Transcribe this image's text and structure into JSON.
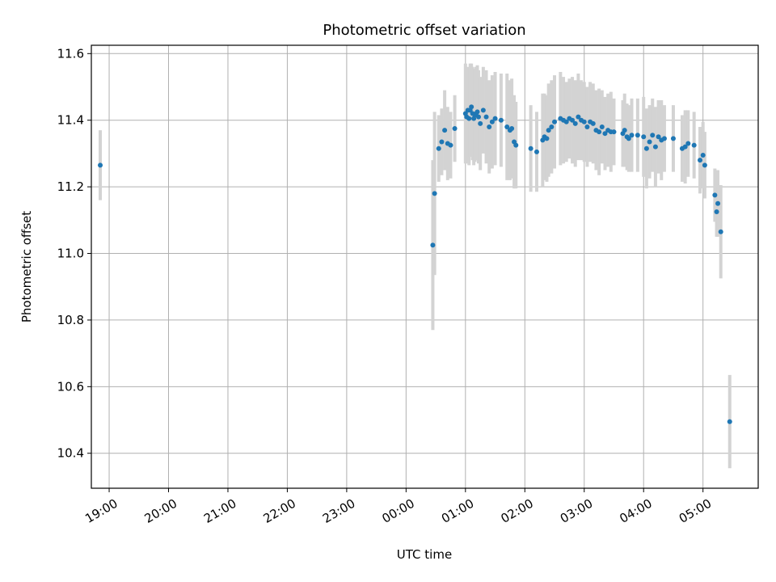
{
  "chart_data": {
    "type": "scatter",
    "title": "Photometric offset variation",
    "xlabel": "UTC time",
    "ylabel": "Photometric offset",
    "grid": true,
    "xlim_hours": [
      18.7,
      29.93
    ],
    "ylim": [
      10.295,
      11.625
    ],
    "x_ticks": [
      {
        "hours": 19,
        "label": "19:00"
      },
      {
        "hours": 20,
        "label": "20:00"
      },
      {
        "hours": 21,
        "label": "21:00"
      },
      {
        "hours": 22,
        "label": "22:00"
      },
      {
        "hours": 23,
        "label": "23:00"
      },
      {
        "hours": 24,
        "label": "00:00"
      },
      {
        "hours": 25,
        "label": "01:00"
      },
      {
        "hours": 26,
        "label": "02:00"
      },
      {
        "hours": 27,
        "label": "03:00"
      },
      {
        "hours": 28,
        "label": "04:00"
      },
      {
        "hours": 29,
        "label": "05:00"
      }
    ],
    "y_ticks": [
      {
        "value": 10.4,
        "label": "10.4"
      },
      {
        "value": 10.6,
        "label": "10.6"
      },
      {
        "value": 10.8,
        "label": "10.8"
      },
      {
        "value": 11.0,
        "label": "11.0"
      },
      {
        "value": 11.2,
        "label": "11.2"
      },
      {
        "value": 11.4,
        "label": "11.4"
      },
      {
        "value": 11.6,
        "label": "11.6"
      }
    ],
    "colors": {
      "point": "#1f77b4",
      "errorbar": "#d3d3d3",
      "grid": "#b0b0b0"
    },
    "series": [
      {
        "x_hours": [
          18.85,
          24.45,
          24.48,
          24.55,
          24.6,
          24.65,
          24.7,
          24.75,
          24.82,
          25.0,
          25.02,
          25.04,
          25.06,
          25.08,
          25.1,
          25.12,
          25.14,
          25.16,
          25.18,
          25.2,
          25.22,
          25.25,
          25.3,
          25.35,
          25.4,
          25.45,
          25.5,
          25.6,
          25.7,
          25.75,
          25.78,
          25.82,
          25.85,
          26.1,
          26.2,
          26.3,
          26.33,
          26.37,
          26.4,
          26.45,
          26.5,
          26.6,
          26.65,
          26.7,
          26.75,
          26.8,
          26.85,
          26.9,
          26.95,
          27.0,
          27.05,
          27.1,
          27.15,
          27.2,
          27.25,
          27.3,
          27.35,
          27.4,
          27.45,
          27.5,
          27.65,
          27.68,
          27.72,
          27.75,
          27.8,
          27.9,
          28.0,
          28.05,
          28.1,
          28.15,
          28.2,
          28.25,
          28.3,
          28.35,
          28.5,
          28.65,
          28.7,
          28.75,
          28.85,
          28.95,
          29.0,
          29.03,
          29.2,
          29.23,
          29.25,
          29.3,
          29.45
        ],
        "y": [
          11.265,
          11.025,
          11.18,
          11.315,
          11.335,
          11.37,
          11.33,
          11.325,
          11.375,
          11.42,
          11.41,
          11.43,
          11.405,
          11.43,
          11.44,
          11.42,
          11.405,
          11.415,
          11.42,
          11.425,
          11.41,
          11.39,
          11.43,
          11.41,
          11.38,
          11.395,
          11.405,
          11.4,
          11.38,
          11.37,
          11.375,
          11.335,
          11.325,
          11.315,
          11.305,
          11.34,
          11.35,
          11.345,
          11.37,
          11.38,
          11.395,
          11.405,
          11.4,
          11.395,
          11.405,
          11.4,
          11.39,
          11.41,
          11.4,
          11.395,
          11.38,
          11.395,
          11.39,
          11.37,
          11.365,
          11.38,
          11.36,
          11.37,
          11.365,
          11.365,
          11.36,
          11.37,
          11.35,
          11.345,
          11.355,
          11.355,
          11.35,
          11.315,
          11.335,
          11.355,
          11.32,
          11.35,
          11.34,
          11.345,
          11.345,
          11.315,
          11.32,
          11.33,
          11.325,
          11.28,
          11.295,
          11.265,
          11.175,
          11.125,
          11.15,
          11.065,
          10.495
        ],
        "err": [
          0.105,
          0.255,
          0.245,
          0.1,
          0.1,
          0.12,
          0.11,
          0.1,
          0.1,
          0.15,
          0.14,
          0.13,
          0.14,
          0.14,
          0.13,
          0.14,
          0.14,
          0.14,
          0.14,
          0.14,
          0.14,
          0.14,
          0.13,
          0.14,
          0.14,
          0.14,
          0.14,
          0.14,
          0.16,
          0.15,
          0.15,
          0.14,
          0.13,
          0.13,
          0.12,
          0.14,
          0.13,
          0.13,
          0.14,
          0.14,
          0.14,
          0.14,
          0.13,
          0.12,
          0.12,
          0.13,
          0.13,
          0.13,
          0.12,
          0.12,
          0.12,
          0.12,
          0.12,
          0.12,
          0.13,
          0.11,
          0.11,
          0.11,
          0.12,
          0.1,
          0.1,
          0.11,
          0.1,
          0.1,
          0.11,
          0.11,
          0.12,
          0.12,
          0.11,
          0.11,
          0.12,
          0.11,
          0.12,
          0.1,
          0.1,
          0.1,
          0.11,
          0.1,
          0.1,
          0.1,
          0.1,
          0.1,
          0.08,
          0.075,
          0.1,
          0.14,
          0.14
        ]
      }
    ]
  }
}
